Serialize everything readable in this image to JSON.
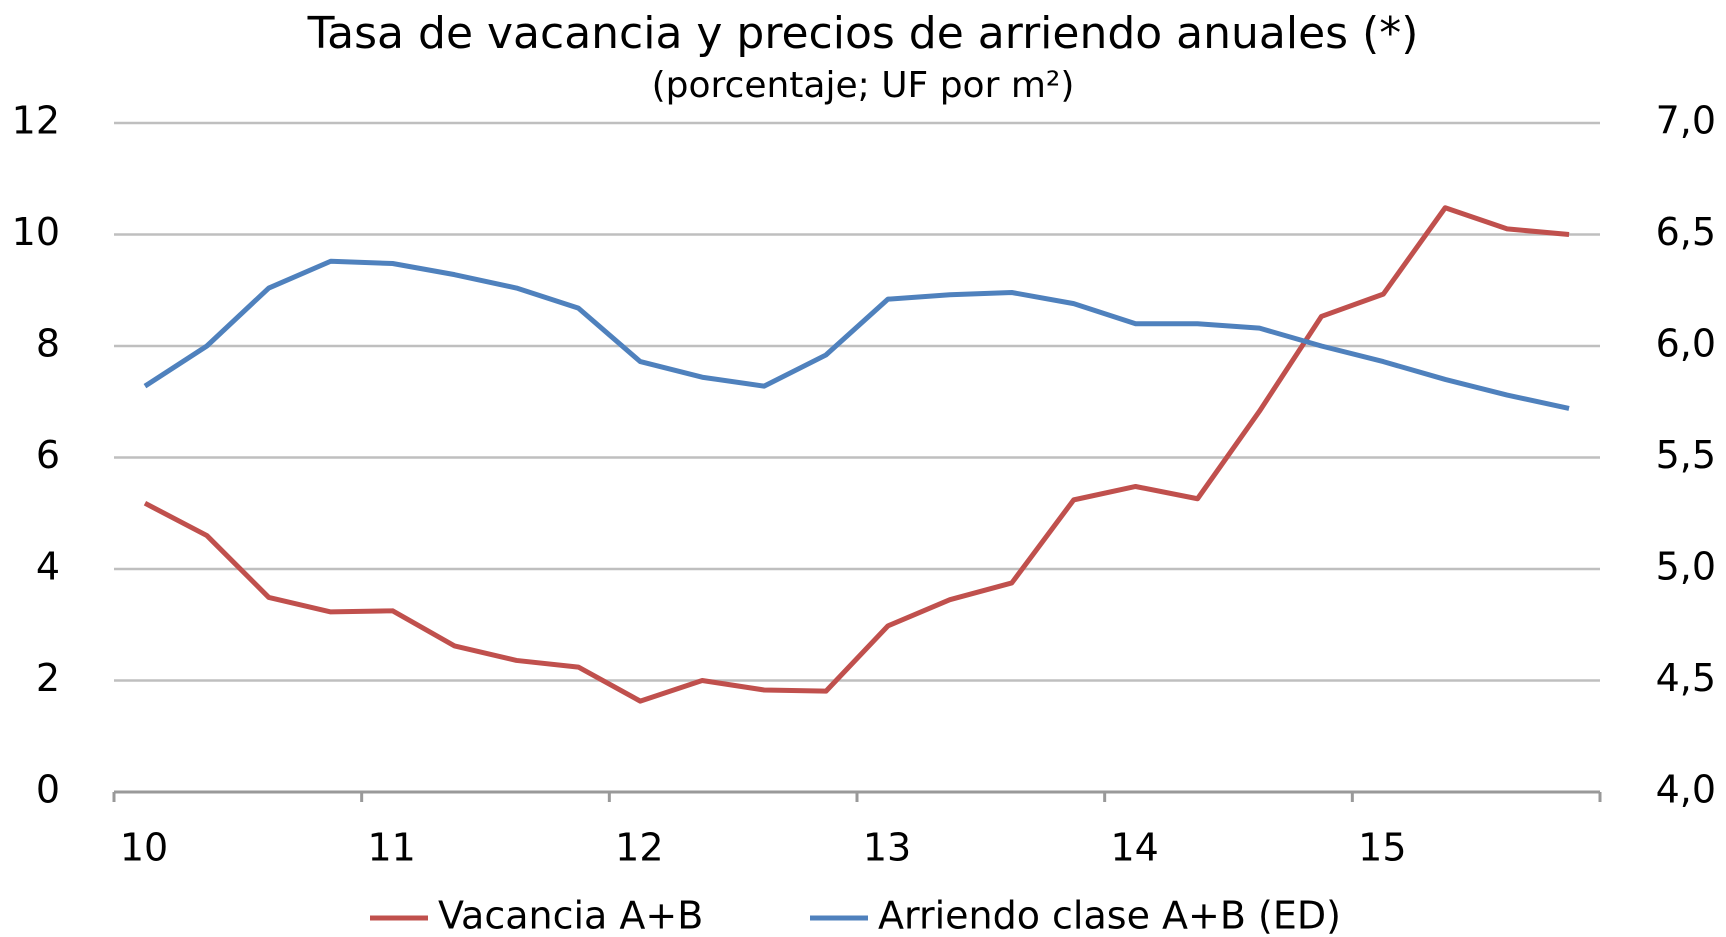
{
  "chart_data": {
    "type": "line",
    "title": "Tasa de vacancia y precios de arriendo anuales (*)",
    "subtitle": "(porcentaje; UF por m²)",
    "x": [
      10.125,
      10.375,
      10.625,
      10.875,
      11.125,
      11.375,
      11.625,
      11.875,
      12.125,
      12.375,
      12.625,
      12.875,
      13.125,
      13.375,
      13.625,
      13.875,
      14.125,
      14.375,
      14.625,
      14.875,
      15.125,
      15.375,
      15.625,
      15.875
    ],
    "xlim": [
      10,
      16
    ],
    "xticks": [
      10,
      11,
      12,
      13,
      14,
      15
    ],
    "ylim": [
      0,
      12
    ],
    "yticks": [
      0,
      2,
      4,
      6,
      8,
      10,
      12
    ],
    "y2lim": [
      4,
      7
    ],
    "y2ticks": [
      {
        "value": 4,
        "label": "4,0"
      },
      {
        "value": 4.5,
        "label": "4,5"
      },
      {
        "value": 5,
        "label": "5,0"
      },
      {
        "value": 5.5,
        "label": "5,5"
      },
      {
        "value": 6,
        "label": "6,0"
      },
      {
        "value": 6.5,
        "label": "6,5"
      },
      {
        "value": 7,
        "label": "7,0"
      }
    ],
    "grid": true,
    "legend": "bottom",
    "series": [
      {
        "name": "Vacancia A+B",
        "color": "#c0504d",
        "values": [
          5.18,
          4.6,
          3.49,
          3.23,
          3.25,
          2.62,
          2.36,
          2.24,
          1.63,
          2.0,
          1.83,
          1.81,
          2.98,
          3.45,
          3.75,
          5.24,
          5.48,
          5.26,
          6.83,
          8.53,
          8.93,
          10.48,
          10.1,
          10.0
        ]
      },
      {
        "name": "Arriendo clase A+B (ED)",
        "color": "#4f81bd",
        "axis": "y2",
        "values": [
          5.82,
          6.0,
          6.26,
          6.38,
          6.37,
          6.32,
          6.26,
          6.17,
          5.93,
          5.86,
          5.82,
          5.96,
          6.21,
          6.23,
          6.24,
          6.19,
          6.1,
          6.1,
          6.08,
          6.0,
          5.93,
          5.85,
          5.78,
          5.72
        ]
      }
    ]
  }
}
